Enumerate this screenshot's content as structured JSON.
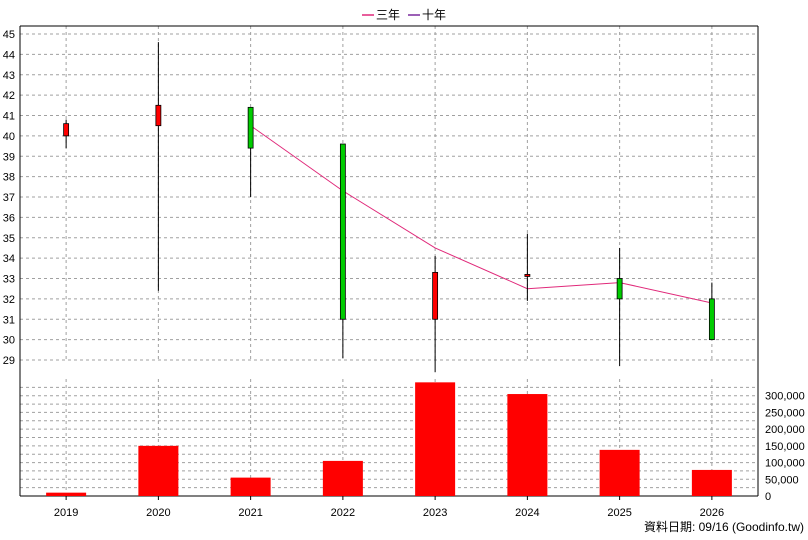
{
  "chart_data": {
    "type": "candlestick",
    "legend": [
      {
        "label": "三年",
        "color": "#e0297a"
      },
      {
        "label": "十年",
        "color": "#7b2a9e"
      }
    ],
    "categories": [
      "2019",
      "2020",
      "2021",
      "2022",
      "2023",
      "2024",
      "2025",
      "2026"
    ],
    "price_axis": {
      "min": 29,
      "max": 45,
      "ticks": [
        29,
        30,
        31,
        32,
        33,
        34,
        35,
        36,
        37,
        38,
        39,
        40,
        41,
        42,
        43,
        44,
        45
      ]
    },
    "candles": [
      {
        "year": "2019",
        "open": 40.0,
        "high": 40.8,
        "low": 39.4,
        "close": 40.6,
        "color": "red"
      },
      {
        "year": "2020",
        "open": 40.5,
        "high": 44.6,
        "low": 32.4,
        "close": 41.5,
        "color": "red"
      },
      {
        "year": "2021",
        "open": 41.4,
        "high": 41.4,
        "low": 37.0,
        "close": 39.4,
        "color": "green"
      },
      {
        "year": "2022",
        "open": 39.6,
        "high": 39.6,
        "low": 29.1,
        "close": 31.0,
        "color": "green"
      },
      {
        "year": "2023",
        "open": 31.0,
        "high": 34.1,
        "low": 28.4,
        "close": 33.3,
        "color": "red"
      },
      {
        "year": "2024",
        "open": 33.1,
        "high": 35.2,
        "low": 31.9,
        "close": 33.2,
        "color": "red"
      },
      {
        "year": "2025",
        "open": 33.0,
        "high": 34.5,
        "low": 28.7,
        "close": 32.0,
        "color": "green"
      },
      {
        "year": "2026",
        "open": 32.0,
        "high": 32.8,
        "low": 30.0,
        "close": 30.0,
        "color": "green"
      }
    ],
    "line_series": {
      "name": "三年",
      "x": [
        "2021",
        "2022",
        "2023",
        "2024",
        "2025",
        "2026"
      ],
      "values": [
        40.5,
        37.3,
        34.5,
        32.5,
        32.8,
        31.8
      ]
    },
    "volume_axis": {
      "min": 0,
      "max": 350000,
      "ticks": [
        "0",
        "50,000",
        "100,000",
        "150,000",
        "200,000",
        "250,000",
        "300,000"
      ]
    },
    "volume": [
      10000,
      150000,
      55000,
      105000,
      340000,
      305000,
      138000,
      78000
    ],
    "grid": true
  },
  "footer": {
    "source": "資料日期: 09/16  (Goodinfo.tw)"
  },
  "colors": {
    "up": "#ff0000",
    "down": "#00cc00",
    "volume": "#ff0000",
    "line": "#e0297a",
    "grid": "#a0a0a0"
  }
}
